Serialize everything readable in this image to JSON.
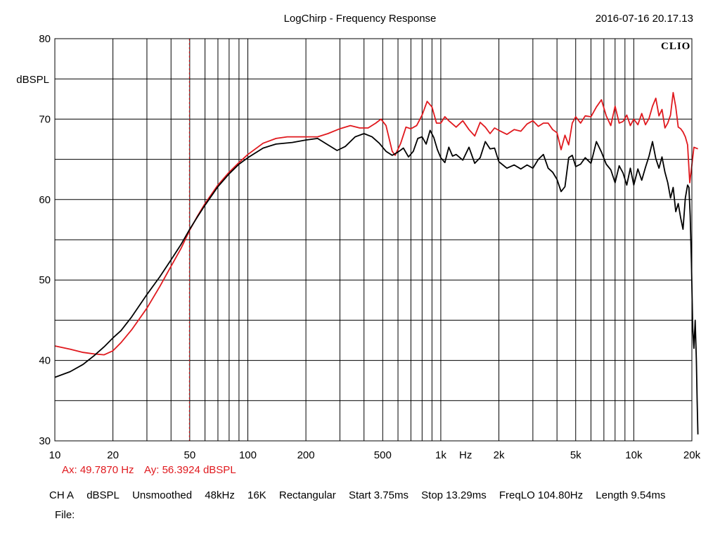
{
  "header": {
    "title": "LogChirp - Frequency Response",
    "timestamp": "2016-07-16 20.17.13"
  },
  "logo": "CLIO",
  "cursor": {
    "ax_label": "Ax: 49.7870 Hz",
    "ay_label": "Ay: 56.3924 dBSPL",
    "x": 49.787,
    "y": 56.3924
  },
  "status": {
    "channel": "CH A",
    "unit": "dBSPL",
    "smoothing": "Unsmoothed",
    "sample_rate": "48kHz",
    "fft_size": "16K",
    "window": "Rectangular",
    "start": "Start 3.75ms",
    "stop": "Stop 13.29ms",
    "freqlo": "FreqLO 104.80Hz",
    "length": "Length 9.54ms"
  },
  "file_label": "File:",
  "colors": {
    "series_red": "#e0191e",
    "series_black": "#000000",
    "grid": "#000000",
    "cursor": "#e0191e"
  },
  "chart_data": {
    "type": "line",
    "title": "LogChirp - Frequency Response",
    "xscale": "log",
    "xlim": [
      10,
      20000
    ],
    "ylim": [
      30,
      80
    ],
    "ylabel": "dBSPL",
    "xlabel": "Hz",
    "grid": true,
    "x_ticks": [
      {
        "value": 10,
        "label": "10"
      },
      {
        "value": 20,
        "label": "20"
      },
      {
        "value": 50,
        "label": "50"
      },
      {
        "value": 100,
        "label": "100"
      },
      {
        "value": 200,
        "label": "200"
      },
      {
        "value": 500,
        "label": "500"
      },
      {
        "value": 1000,
        "label": "1k"
      },
      {
        "value": 2000,
        "label": "2k"
      },
      {
        "value": 5000,
        "label": "5k"
      },
      {
        "value": 10000,
        "label": "10k"
      },
      {
        "value": 20000,
        "label": "20k"
      }
    ],
    "y_ticks": [
      {
        "value": 30,
        "label": "30"
      },
      {
        "value": 40,
        "label": "40"
      },
      {
        "value": 50,
        "label": "50"
      },
      {
        "value": 60,
        "label": "60"
      },
      {
        "value": 70,
        "label": "70"
      },
      {
        "value": 80,
        "label": "80"
      }
    ],
    "series": [
      {
        "color": "#e0191e",
        "points": [
          [
            10,
            41.8
          ],
          [
            12,
            41.4
          ],
          [
            14,
            41.0
          ],
          [
            16,
            40.8
          ],
          [
            18,
            40.7
          ],
          [
            20,
            41.2
          ],
          [
            22,
            42.2
          ],
          [
            25,
            43.8
          ],
          [
            30,
            46.5
          ],
          [
            35,
            49.2
          ],
          [
            40,
            51.7
          ],
          [
            45,
            53.9
          ],
          [
            50,
            56.2
          ],
          [
            55,
            58.0
          ],
          [
            60,
            59.5
          ],
          [
            70,
            61.8
          ],
          [
            80,
            63.4
          ],
          [
            90,
            64.6
          ],
          [
            100,
            65.6
          ],
          [
            120,
            67.0
          ],
          [
            140,
            67.6
          ],
          [
            160,
            67.8
          ],
          [
            200,
            67.8
          ],
          [
            230,
            67.8
          ],
          [
            260,
            68.2
          ],
          [
            300,
            68.8
          ],
          [
            340,
            69.2
          ],
          [
            380,
            68.9
          ],
          [
            420,
            68.9
          ],
          [
            460,
            69.5
          ],
          [
            490,
            70.0
          ],
          [
            520,
            69.2
          ],
          [
            560,
            66.0
          ],
          [
            580,
            65.5
          ],
          [
            620,
            67.0
          ],
          [
            660,
            69.0
          ],
          [
            700,
            68.8
          ],
          [
            750,
            69.2
          ],
          [
            800,
            70.5
          ],
          [
            850,
            72.2
          ],
          [
            900,
            71.5
          ],
          [
            950,
            69.5
          ],
          [
            1000,
            69.5
          ],
          [
            1050,
            70.3
          ],
          [
            1100,
            69.8
          ],
          [
            1200,
            69.0
          ],
          [
            1300,
            69.8
          ],
          [
            1400,
            68.7
          ],
          [
            1500,
            67.9
          ],
          [
            1600,
            69.6
          ],
          [
            1700,
            69.0
          ],
          [
            1800,
            68.2
          ],
          [
            1900,
            68.9
          ],
          [
            2000,
            68.6
          ],
          [
            2200,
            68.1
          ],
          [
            2400,
            68.7
          ],
          [
            2600,
            68.5
          ],
          [
            2800,
            69.4
          ],
          [
            3000,
            69.8
          ],
          [
            3200,
            69.1
          ],
          [
            3400,
            69.5
          ],
          [
            3600,
            69.5
          ],
          [
            3800,
            68.7
          ],
          [
            4000,
            68.3
          ],
          [
            4200,
            66.2
          ],
          [
            4400,
            68.0
          ],
          [
            4600,
            66.8
          ],
          [
            4800,
            69.5
          ],
          [
            5000,
            70.3
          ],
          [
            5300,
            69.5
          ],
          [
            5600,
            70.4
          ],
          [
            6000,
            70.3
          ],
          [
            6400,
            71.5
          ],
          [
            6800,
            72.4
          ],
          [
            7200,
            70.4
          ],
          [
            7600,
            69.2
          ],
          [
            8000,
            71.6
          ],
          [
            8400,
            69.5
          ],
          [
            8800,
            69.7
          ],
          [
            9200,
            70.5
          ],
          [
            9600,
            69.2
          ],
          [
            10000,
            70.0
          ],
          [
            10500,
            69.3
          ],
          [
            11000,
            70.7
          ],
          [
            11500,
            69.3
          ],
          [
            12000,
            70.1
          ],
          [
            12500,
            71.6
          ],
          [
            13000,
            72.6
          ],
          [
            13500,
            70.4
          ],
          [
            14000,
            71.2
          ],
          [
            14500,
            68.9
          ],
          [
            15000,
            69.5
          ],
          [
            15500,
            70.5
          ],
          [
            16000,
            73.3
          ],
          [
            16500,
            71.5
          ],
          [
            17000,
            69.0
          ],
          [
            17500,
            68.8
          ],
          [
            18000,
            68.4
          ],
          [
            18500,
            67.8
          ],
          [
            19000,
            66.8
          ],
          [
            19500,
            62.1
          ],
          [
            20000,
            64.3
          ],
          [
            20500,
            66.5
          ],
          [
            21500,
            66.3
          ]
        ]
      },
      {
        "color": "#000000",
        "points": [
          [
            10,
            37.9
          ],
          [
            12,
            38.6
          ],
          [
            14,
            39.5
          ],
          [
            16,
            40.6
          ],
          [
            18,
            41.7
          ],
          [
            20,
            42.8
          ],
          [
            22,
            43.7
          ],
          [
            25,
            45.4
          ],
          [
            30,
            48.2
          ],
          [
            35,
            50.4
          ],
          [
            40,
            52.5
          ],
          [
            45,
            54.4
          ],
          [
            50,
            56.3
          ],
          [
            55,
            57.9
          ],
          [
            60,
            59.3
          ],
          [
            70,
            61.6
          ],
          [
            80,
            63.2
          ],
          [
            90,
            64.4
          ],
          [
            100,
            65.2
          ],
          [
            120,
            66.4
          ],
          [
            140,
            66.9
          ],
          [
            170,
            67.1
          ],
          [
            200,
            67.4
          ],
          [
            230,
            67.6
          ],
          [
            260,
            66.8
          ],
          [
            290,
            66.1
          ],
          [
            320,
            66.6
          ],
          [
            360,
            67.8
          ],
          [
            400,
            68.2
          ],
          [
            440,
            67.8
          ],
          [
            480,
            67.0
          ],
          [
            520,
            66.0
          ],
          [
            560,
            65.5
          ],
          [
            600,
            65.9
          ],
          [
            640,
            66.4
          ],
          [
            680,
            65.3
          ],
          [
            720,
            66.0
          ],
          [
            760,
            67.6
          ],
          [
            800,
            67.8
          ],
          [
            840,
            66.9
          ],
          [
            880,
            68.6
          ],
          [
            920,
            67.7
          ],
          [
            960,
            66.2
          ],
          [
            1000,
            65.2
          ],
          [
            1050,
            64.6
          ],
          [
            1100,
            66.5
          ],
          [
            1150,
            65.4
          ],
          [
            1200,
            65.6
          ],
          [
            1300,
            64.9
          ],
          [
            1400,
            66.5
          ],
          [
            1500,
            64.5
          ],
          [
            1600,
            65.2
          ],
          [
            1700,
            67.2
          ],
          [
            1800,
            66.3
          ],
          [
            1900,
            66.4
          ],
          [
            2000,
            64.7
          ],
          [
            2200,
            63.9
          ],
          [
            2400,
            64.3
          ],
          [
            2600,
            63.8
          ],
          [
            2800,
            64.3
          ],
          [
            3000,
            63.9
          ],
          [
            3200,
            65.0
          ],
          [
            3400,
            65.6
          ],
          [
            3600,
            63.9
          ],
          [
            3800,
            63.4
          ],
          [
            4000,
            62.5
          ],
          [
            4200,
            61.0
          ],
          [
            4400,
            61.6
          ],
          [
            4600,
            65.2
          ],
          [
            4800,
            65.5
          ],
          [
            5000,
            64.1
          ],
          [
            5300,
            64.4
          ],
          [
            5600,
            65.2
          ],
          [
            6000,
            64.5
          ],
          [
            6400,
            67.2
          ],
          [
            6800,
            65.9
          ],
          [
            7200,
            64.4
          ],
          [
            7600,
            63.7
          ],
          [
            8000,
            62.1
          ],
          [
            8400,
            64.2
          ],
          [
            8800,
            63.3
          ],
          [
            9200,
            61.8
          ],
          [
            9600,
            63.9
          ],
          [
            10000,
            61.8
          ],
          [
            10500,
            63.8
          ],
          [
            11000,
            62.4
          ],
          [
            11500,
            64.0
          ],
          [
            12000,
            65.4
          ],
          [
            12500,
            67.2
          ],
          [
            13000,
            65.1
          ],
          [
            13500,
            63.9
          ],
          [
            14000,
            65.3
          ],
          [
            14500,
            63.4
          ],
          [
            15000,
            62.1
          ],
          [
            15500,
            60.2
          ],
          [
            16000,
            61.5
          ],
          [
            16500,
            58.5
          ],
          [
            17000,
            59.5
          ],
          [
            17500,
            57.7
          ],
          [
            18000,
            56.3
          ],
          [
            18500,
            60.2
          ],
          [
            19000,
            61.8
          ],
          [
            19300,
            61.5
          ],
          [
            19600,
            58.0
          ],
          [
            19900,
            52.0
          ],
          [
            20200,
            44.0
          ],
          [
            20500,
            41.5
          ],
          [
            20800,
            45.0
          ],
          [
            21100,
            40.0
          ],
          [
            21300,
            35.0
          ],
          [
            21500,
            30.8
          ]
        ]
      }
    ]
  }
}
